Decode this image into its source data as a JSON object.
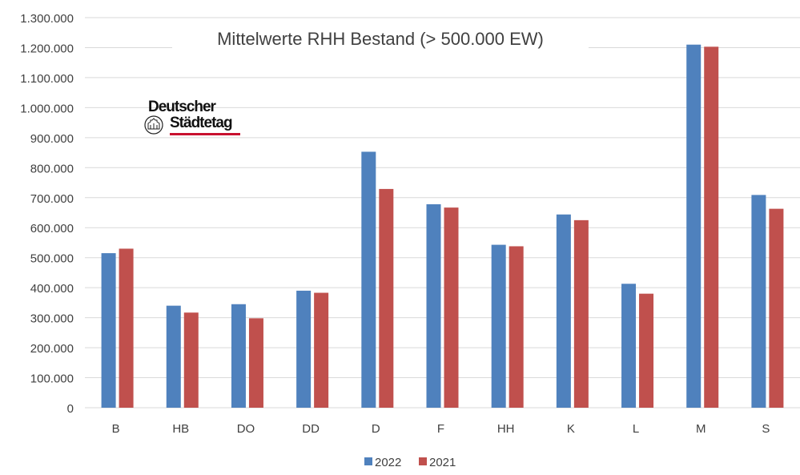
{
  "chart_data": {
    "type": "bar",
    "title": "Mittelwerte RHH Bestand (> 500.000 EW)",
    "categories": [
      "B",
      "HB",
      "DO",
      "DD",
      "D",
      "F",
      "HH",
      "K",
      "L",
      "M",
      "S"
    ],
    "series": [
      {
        "name": "2022",
        "color": "#4f81bd",
        "values": [
          515000,
          340000,
          345000,
          390000,
          853000,
          678000,
          543000,
          644000,
          413000,
          1210000,
          709000
        ]
      },
      {
        "name": "2021",
        "color": "#c0504d",
        "values": [
          530000,
          317000,
          298000,
          383000,
          729000,
          667000,
          538000,
          625000,
          380000,
          1203000,
          663000
        ]
      }
    ],
    "yticks": [
      "0",
      "100.000",
      "200.000",
      "300.000",
      "400.000",
      "500.000",
      "600.000",
      "700.000",
      "800.000",
      "900.000",
      "1.000.000",
      "1.100.000",
      "1.200.000",
      "1.300.000"
    ],
    "ylim": [
      0,
      1300000
    ],
    "grid": true,
    "legend_position": "bottom",
    "xlabel": "",
    "ylabel": ""
  },
  "logo": {
    "line1": "Deutscher",
    "line2": "Städtetag",
    "icon": "city-seal-icon"
  }
}
